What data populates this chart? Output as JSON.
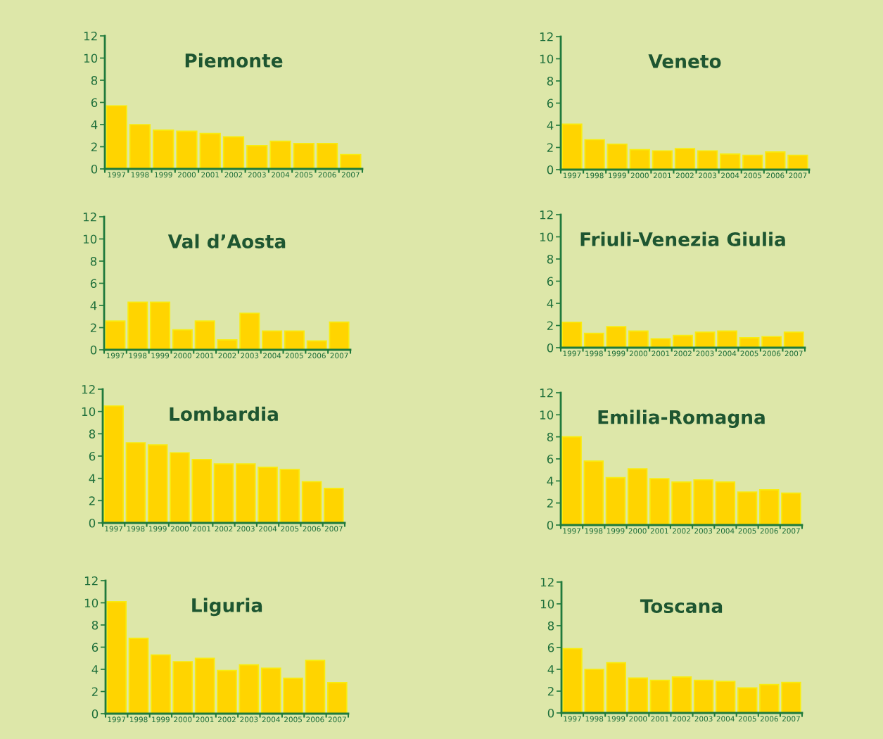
{
  "chart_data": [
    {
      "type": "bar",
      "title": "Piemonte",
      "categories": [
        "1997",
        "1998",
        "1999",
        "2000",
        "2001",
        "2002",
        "2003",
        "2004",
        "2005",
        "2006",
        "2007"
      ],
      "values": [
        5.7,
        4.0,
        3.5,
        3.4,
        3.2,
        2.9,
        2.1,
        2.5,
        2.3,
        2.3,
        1.3
      ],
      "color": "#ffd400",
      "ylim": [
        0,
        12
      ],
      "yticks": [
        0,
        2,
        4,
        6,
        8,
        10,
        12
      ]
    },
    {
      "type": "bar",
      "title": "Veneto",
      "categories": [
        "1997",
        "1998",
        "1999",
        "2000",
        "2001",
        "2002",
        "2003",
        "2004",
        "2005",
        "2006",
        "2007"
      ],
      "values": [
        4.1,
        2.7,
        2.3,
        1.8,
        1.7,
        1.9,
        1.7,
        1.4,
        1.3,
        1.6,
        1.3
      ],
      "color": "#ffd400",
      "ylim": [
        0,
        12
      ],
      "yticks": [
        0,
        2,
        4,
        6,
        8,
        10,
        12
      ]
    },
    {
      "type": "bar",
      "title": "Val d’Aosta",
      "categories": [
        "1997",
        "1998",
        "1999",
        "2000",
        "2001",
        "2002",
        "2003",
        "2004",
        "2005",
        "2006",
        "2007"
      ],
      "values": [
        2.6,
        4.3,
        4.3,
        1.8,
        2.6,
        0.9,
        3.3,
        1.7,
        1.7,
        0.8,
        2.5
      ],
      "color": "#ffd400",
      "ylim": [
        0,
        12
      ],
      "yticks": [
        0,
        2,
        4,
        6,
        8,
        10,
        12
      ]
    },
    {
      "type": "bar",
      "title": "Friuli-Venezia Giulia",
      "categories": [
        "1997",
        "1998",
        "1999",
        "2000",
        "2001",
        "2002",
        "2003",
        "2004",
        "2005",
        "2006",
        "2007"
      ],
      "values": [
        2.3,
        1.3,
        1.9,
        1.5,
        0.8,
        1.1,
        1.4,
        1.5,
        0.9,
        1.0,
        1.4
      ],
      "color": "#ffd400",
      "ylim": [
        0,
        12
      ],
      "yticks": [
        0,
        2,
        4,
        6,
        8,
        10,
        12
      ]
    },
    {
      "type": "bar",
      "title": "Lombardia",
      "categories": [
        "1997",
        "1998",
        "1999",
        "2000",
        "2001",
        "2002",
        "2003",
        "2004",
        "2005",
        "2006",
        "2007"
      ],
      "values": [
        10.5,
        7.2,
        7.0,
        6.3,
        5.7,
        5.3,
        5.3,
        5.0,
        4.8,
        3.7,
        3.1
      ],
      "color": "#ffd400",
      "ylim": [
        0,
        12
      ],
      "yticks": [
        0,
        2,
        4,
        6,
        8,
        10,
        12
      ]
    },
    {
      "type": "bar",
      "title": "Emilia-Romagna",
      "categories": [
        "1997",
        "1998",
        "1999",
        "2000",
        "2001",
        "2002",
        "2003",
        "2004",
        "2005",
        "2006",
        "2007"
      ],
      "values": [
        8.0,
        5.8,
        4.3,
        5.1,
        4.2,
        3.9,
        4.1,
        3.9,
        3.0,
        3.2,
        2.9
      ],
      "color": "#ffd400",
      "ylim": [
        0,
        12
      ],
      "yticks": [
        0,
        2,
        4,
        6,
        8,
        10,
        12
      ]
    },
    {
      "type": "bar",
      "title": "Liguria",
      "categories": [
        "1997",
        "1998",
        "1999",
        "2000",
        "2001",
        "2002",
        "2003",
        "2004",
        "2005",
        "2006",
        "2007"
      ],
      "values": [
        10.1,
        6.8,
        5.3,
        4.7,
        5.0,
        3.9,
        4.4,
        4.1,
        3.2,
        4.8,
        2.8
      ],
      "color": "#ffd400",
      "ylim": [
        0,
        12
      ],
      "yticks": [
        0,
        2,
        4,
        6,
        8,
        10,
        12
      ]
    },
    {
      "type": "bar",
      "title": "Toscana",
      "categories": [
        "1997",
        "1998",
        "1999",
        "2000",
        "2001",
        "2002",
        "2003",
        "2004",
        "2005",
        "2006",
        "2007"
      ],
      "values": [
        5.9,
        4.0,
        4.6,
        3.2,
        3.0,
        3.3,
        3.0,
        2.9,
        2.3,
        2.6,
        2.8
      ],
      "color": "#ffd400",
      "ylim": [
        0,
        12
      ],
      "yticks": [
        0,
        2,
        4,
        6,
        8,
        10,
        12
      ]
    }
  ]
}
